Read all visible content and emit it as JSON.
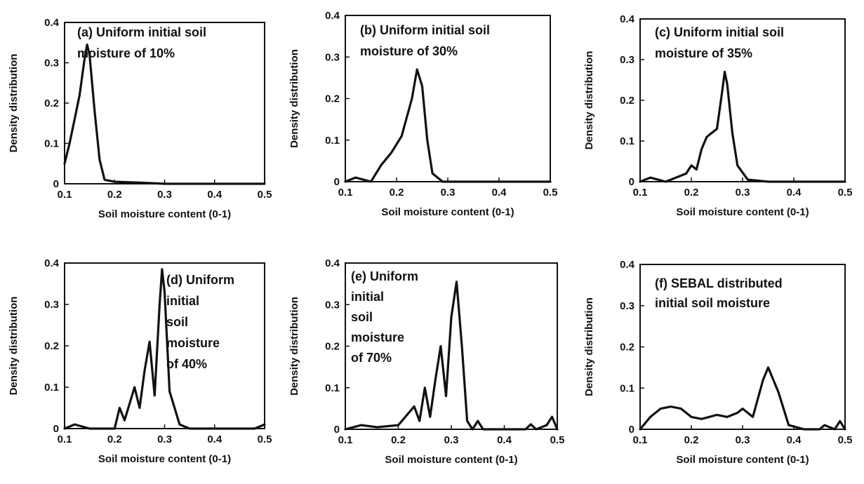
{
  "chart_data": [
    {
      "type": "line",
      "xlabel": "Soil moisture content (0-1)",
      "ylabel": "Density distribution",
      "xlim": [
        0.1,
        0.5
      ],
      "ylim": [
        0,
        0.4
      ],
      "xticks": [
        "0.1",
        "0.2",
        "0.3",
        "0.4",
        "0.5"
      ],
      "yticks": [
        "0",
        "0.1",
        "0.2",
        "0.3",
        "0.4"
      ],
      "annotation": [
        "(a)  Uniform initial soil",
        "moisture of 10%"
      ],
      "series": [
        {
          "x": [
            0.1,
            0.11,
            0.12,
            0.13,
            0.14,
            0.145,
            0.15,
            0.16,
            0.17,
            0.18,
            0.2,
            0.25,
            0.3,
            0.4,
            0.5
          ],
          "y": [
            0.05,
            0.1,
            0.16,
            0.22,
            0.31,
            0.345,
            0.32,
            0.18,
            0.06,
            0.01,
            0.005,
            0.003,
            0.0,
            0.0,
            0.0
          ]
        }
      ]
    },
    {
      "type": "line",
      "xlabel": "Soil moisture content (0-1)",
      "ylabel": "Density distribution",
      "xlim": [
        0.1,
        0.5
      ],
      "ylim": [
        0,
        0.4
      ],
      "xticks": [
        "0.1",
        "0.2",
        "0.3",
        "0.4",
        "0.5"
      ],
      "yticks": [
        "0",
        "0.1",
        "0.2",
        "0.3",
        "0.4"
      ],
      "annotation": [
        "(b)  Uniform initial soil",
        "moisture of 30%"
      ],
      "series": [
        {
          "x": [
            0.1,
            0.12,
            0.15,
            0.17,
            0.19,
            0.21,
            0.23,
            0.24,
            0.25,
            0.26,
            0.27,
            0.29,
            0.35,
            0.45,
            0.5
          ],
          "y": [
            0.0,
            0.01,
            0.0,
            0.04,
            0.07,
            0.11,
            0.2,
            0.27,
            0.23,
            0.1,
            0.02,
            0.0,
            0.0,
            0.0,
            0.0
          ]
        }
      ]
    },
    {
      "type": "line",
      "xlabel": "Soil moisture content (0-1)",
      "ylabel": "Density distribution",
      "xlim": [
        0.1,
        0.5
      ],
      "ylim": [
        0,
        0.4
      ],
      "xticks": [
        "0.1",
        "0.2",
        "0.3",
        "0.4",
        "0.5"
      ],
      "yticks": [
        "0",
        "0.1",
        "0.2",
        "0.3",
        "0.4"
      ],
      "annotation": [
        "(c)  Uniform initial soil",
        "moisture of 35%"
      ],
      "series": [
        {
          "x": [
            0.1,
            0.12,
            0.15,
            0.19,
            0.2,
            0.21,
            0.22,
            0.23,
            0.25,
            0.26,
            0.265,
            0.27,
            0.28,
            0.29,
            0.31,
            0.35,
            0.5
          ],
          "y": [
            0.0,
            0.01,
            0.0,
            0.02,
            0.04,
            0.03,
            0.08,
            0.11,
            0.13,
            0.22,
            0.27,
            0.24,
            0.12,
            0.04,
            0.005,
            0.0,
            0.0
          ]
        }
      ]
    },
    {
      "type": "line",
      "xlabel": "Soil moisture content (0-1)",
      "ylabel": "Density distribution",
      "xlim": [
        0.1,
        0.5
      ],
      "ylim": [
        0,
        0.4
      ],
      "xticks": [
        "0.1",
        "0.2",
        "0.3",
        "0.4",
        "0.5"
      ],
      "yticks": [
        "0",
        "0.1",
        "0.2",
        "0.3",
        "0.4"
      ],
      "annotation": [
        "(d) Uniform",
        "initial",
        "soil",
        "moisture",
        "of 40%"
      ],
      "series": [
        {
          "x": [
            0.1,
            0.12,
            0.15,
            0.2,
            0.21,
            0.22,
            0.23,
            0.24,
            0.25,
            0.26,
            0.27,
            0.28,
            0.29,
            0.295,
            0.3,
            0.31,
            0.33,
            0.35,
            0.45,
            0.48,
            0.5
          ],
          "y": [
            0.0,
            0.01,
            0.0,
            0.0,
            0.05,
            0.02,
            0.06,
            0.1,
            0.05,
            0.14,
            0.21,
            0.08,
            0.3,
            0.385,
            0.33,
            0.09,
            0.01,
            0.0,
            0.0,
            0.0,
            0.01
          ]
        }
      ]
    },
    {
      "type": "line",
      "xlabel": "Soil moisture content (0-1)",
      "ylabel": "Density distribution",
      "xlim": [
        0.1,
        0.5
      ],
      "ylim": [
        0,
        0.4
      ],
      "xticks": [
        "0.1",
        "0.2",
        "0.3",
        "0.4",
        "0.5"
      ],
      "yticks": [
        "0",
        "0.1",
        "0.2",
        "0.3",
        "0.4"
      ],
      "annotation": [
        "(e) Uniform",
        "initial",
        "soil",
        "moisture",
        "of 70%"
      ],
      "series": [
        {
          "x": [
            0.1,
            0.13,
            0.16,
            0.2,
            0.22,
            0.23,
            0.24,
            0.25,
            0.26,
            0.27,
            0.28,
            0.29,
            0.3,
            0.31,
            0.32,
            0.33,
            0.34,
            0.35,
            0.36,
            0.4,
            0.44,
            0.45,
            0.46,
            0.48,
            0.49,
            0.5
          ],
          "y": [
            0.0,
            0.01,
            0.005,
            0.01,
            0.04,
            0.055,
            0.02,
            0.1,
            0.03,
            0.12,
            0.2,
            0.08,
            0.27,
            0.355,
            0.2,
            0.02,
            0.0,
            0.02,
            0.0,
            0.0,
            0.0,
            0.012,
            0.0,
            0.01,
            0.03,
            0.0
          ]
        }
      ]
    },
    {
      "type": "line",
      "xlabel": "Soil moisture content (0-1)",
      "ylabel": "Density distribution",
      "xlim": [
        0.1,
        0.5
      ],
      "ylim": [
        0,
        0.4
      ],
      "xticks": [
        "0.1",
        "0.2",
        "0.3",
        "0.4",
        "0.5"
      ],
      "yticks": [
        "0",
        "0.1",
        "0.2",
        "0.3",
        "0.4"
      ],
      "annotation": [
        "(f)  SEBAL distributed",
        "initial soil moisture"
      ],
      "series": [
        {
          "x": [
            0.1,
            0.12,
            0.14,
            0.16,
            0.18,
            0.2,
            0.22,
            0.25,
            0.27,
            0.29,
            0.3,
            0.32,
            0.34,
            0.35,
            0.37,
            0.39,
            0.42,
            0.45,
            0.46,
            0.48,
            0.49,
            0.5
          ],
          "y": [
            0.0,
            0.03,
            0.05,
            0.055,
            0.05,
            0.03,
            0.025,
            0.035,
            0.03,
            0.04,
            0.05,
            0.03,
            0.12,
            0.15,
            0.09,
            0.01,
            0.0,
            0.0,
            0.01,
            0.0,
            0.02,
            0.0
          ]
        }
      ]
    }
  ]
}
